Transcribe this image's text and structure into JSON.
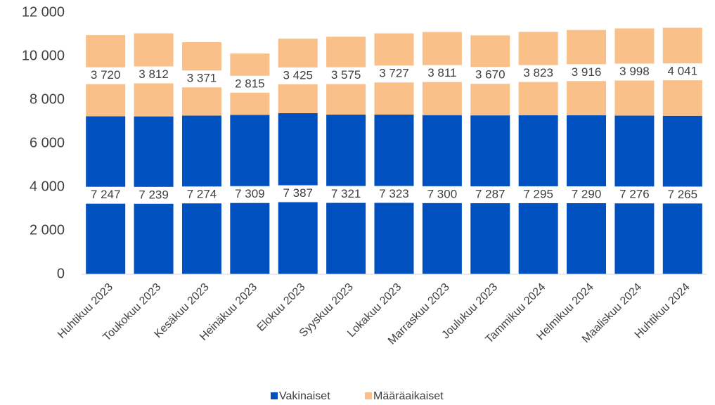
{
  "chart_data": {
    "type": "stacked_bar",
    "categories": [
      "Huhtikuu 2023",
      "Toukokuu 2023",
      "Kesäkuu 2023",
      "Heinäkuu 2023",
      "Elokuu 2023",
      "Syyskuu 2023",
      "Lokakuu 2023",
      "Marraskuu 2023",
      "Joulukuu 2023",
      "Tammikuu 2024",
      "Helmikuu 2024",
      "Maaliskuu 2024",
      "Huhtikuu 2024"
    ],
    "series": [
      {
        "name": "Vakinaiset",
        "color": "#0050c0",
        "values": [
          7247,
          7239,
          7274,
          7309,
          7387,
          7321,
          7323,
          7300,
          7287,
          7295,
          7290,
          7276,
          7265
        ],
        "value_labels": [
          "7 247",
          "7 239",
          "7 274",
          "7 309",
          "7 387",
          "7 321",
          "7 323",
          "7 300",
          "7 287",
          "7 295",
          "7 290",
          "7 276",
          "7 265"
        ]
      },
      {
        "name": "Määräaikaiset",
        "color": "#f9c189",
        "values": [
          3720,
          3812,
          3371,
          2815,
          3425,
          3575,
          3727,
          3811,
          3670,
          3823,
          3916,
          3998,
          4041
        ],
        "value_labels": [
          "3 720",
          "3 812",
          "3 371",
          "2 815",
          "3 425",
          "3 575",
          "3 727",
          "3 811",
          "3 670",
          "3 823",
          "3 916",
          "3 998",
          "4 041"
        ]
      }
    ],
    "ylim": [
      0,
      12000
    ],
    "yticks": [
      0,
      {
        "value": 2000,
        "label": "2 000"
      },
      {
        "value": 4000,
        "label": "4 000"
      },
      {
        "value": 6000,
        "label": "6 000"
      },
      {
        "value": 8000,
        "label": "8 000"
      },
      {
        "value": 10000,
        "label": "10 000"
      },
      {
        "value": 12000,
        "label": "12 000"
      }
    ],
    "grid": false,
    "legend": "bottom"
  }
}
